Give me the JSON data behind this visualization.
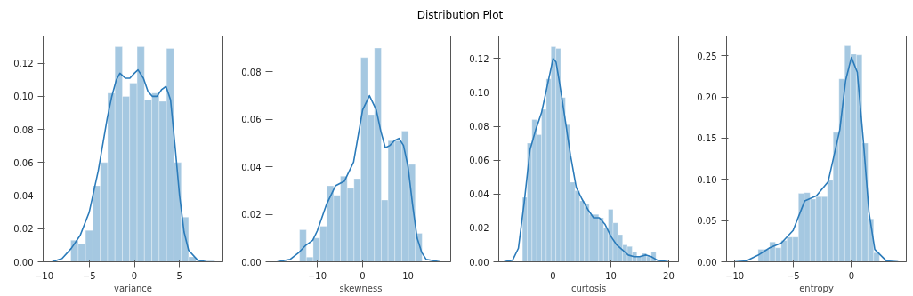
{
  "chart_data": [
    {
      "type": "other",
      "title": "Distribution Plot"
    },
    {
      "type": "histogram",
      "xlabel": "variance",
      "grid": false,
      "xlim": [
        -10.1,
        9.8
      ],
      "ylim": [
        0,
        0.1365
      ],
      "xticks": [
        -10,
        -5,
        0,
        5
      ],
      "yticks": [
        {
          "value": 0,
          "label": "0.00"
        },
        {
          "value": 0.02,
          "label": "0.02"
        },
        {
          "value": 0.04,
          "label": "0.04"
        },
        {
          "value": 0.06,
          "label": "0.06"
        },
        {
          "value": 0.08,
          "label": "0.08"
        },
        {
          "value": 0.1,
          "label": "0.10"
        },
        {
          "value": 0.12,
          "label": "0.12"
        }
      ],
      "series": [
        {
          "type": "histogram",
          "color": "#a5c8e1",
          "bins": [
            -7.04,
            -6.22,
            -5.41,
            -4.59,
            -3.78,
            -2.96,
            -2.15,
            -1.33,
            -0.52,
            0.3,
            1.11,
            1.93,
            2.74,
            3.56,
            4.37,
            5.19,
            6.0,
            6.82
          ],
          "values": [
            0.013,
            0.011,
            0.019,
            0.046,
            0.06,
            0.102,
            0.13,
            0.1,
            0.108,
            0.13,
            0.098,
            0.102,
            0.097,
            0.129,
            0.06,
            0.027,
            0.003
          ]
        },
        {
          "type": "line",
          "color": "#2b7bba",
          "x": [
            -9.1,
            -8,
            -7,
            -6,
            -5,
            -4,
            -3,
            -2.5,
            -2,
            -1.6,
            -1,
            -0.5,
            0,
            0.4,
            1,
            1.5,
            2,
            2.5,
            3,
            3.5,
            4,
            4.5,
            5,
            5.5,
            6,
            7,
            8,
            8.9
          ],
          "values": [
            0,
            0.002,
            0.008,
            0.016,
            0.03,
            0.055,
            0.087,
            0.1,
            0.11,
            0.114,
            0.111,
            0.111,
            0.114,
            0.116,
            0.111,
            0.103,
            0.1,
            0.1,
            0.104,
            0.106,
            0.098,
            0.07,
            0.04,
            0.018,
            0.007,
            0.001,
            0,
            0
          ]
        }
      ]
    },
    {
      "type": "histogram",
      "xlabel": "skewness",
      "grid": false,
      "xlim": [
        -20.2,
        19.4
      ],
      "ylim": [
        0,
        0.0951
      ],
      "xticks": [
        -10,
        0,
        10
      ],
      "yticks": [
        {
          "value": 0,
          "label": "0.00"
        },
        {
          "value": 0.02,
          "label": "0.02"
        },
        {
          "value": 0.04,
          "label": "0.04"
        },
        {
          "value": 0.06,
          "label": "0.06"
        },
        {
          "value": 0.08,
          "label": "0.08"
        }
      ],
      "series": [
        {
          "type": "histogram",
          "color": "#a5c8e1",
          "bins": [
            -13.9,
            -12.4,
            -10.9,
            -9.4,
            -7.9,
            -6.4,
            -4.9,
            -3.4,
            -1.9,
            -0.4,
            1.1,
            2.6,
            4.1,
            5.6,
            7.1,
            8.6,
            10.1,
            11.6,
            13.1
          ],
          "values": [
            0.0135,
            0.002,
            0.01,
            0.015,
            0.032,
            0.028,
            0.036,
            0.031,
            0.035,
            0.086,
            0.062,
            0.09,
            0.026,
            0.051,
            0.051,
            0.055,
            0.041,
            0.012
          ]
        },
        {
          "type": "line",
          "color": "#2b7bba",
          "x": [
            -18.8,
            -16,
            -14,
            -12.5,
            -11,
            -10,
            -8,
            -6,
            -4,
            -2,
            0,
            1.5,
            3,
            4,
            5,
            6,
            7,
            8,
            9,
            10,
            11,
            12,
            13,
            14,
            17
          ],
          "values": [
            0,
            0.001,
            0.004,
            0.007,
            0.009,
            0.013,
            0.024,
            0.032,
            0.034,
            0.042,
            0.064,
            0.07,
            0.064,
            0.055,
            0.048,
            0.049,
            0.051,
            0.052,
            0.049,
            0.04,
            0.024,
            0.01,
            0.004,
            0.001,
            0
          ]
        }
      ]
    },
    {
      "type": "histogram",
      "xlabel": "curtosis",
      "grid": false,
      "xlim": [
        -9.4,
        21.7
      ],
      "ylim": [
        0,
        0.1333
      ],
      "xticks": [
        0,
        10,
        20
      ],
      "yticks": [
        {
          "value": 0,
          "label": "0.00"
        },
        {
          "value": 0.02,
          "label": "0.02"
        },
        {
          "value": 0.04,
          "label": "0.04"
        },
        {
          "value": 0.06,
          "label": "0.06"
        },
        {
          "value": 0.08,
          "label": "0.08"
        },
        {
          "value": 0.1,
          "label": "0.10"
        },
        {
          "value": 0.12,
          "label": "0.12"
        }
      ],
      "series": [
        {
          "type": "histogram",
          "color": "#a5c8e1",
          "bins": [
            -5.3,
            -4.48,
            -3.65,
            -2.83,
            -2.0,
            -1.18,
            -0.35,
            0.48,
            1.3,
            2.13,
            2.95,
            3.78,
            4.6,
            5.43,
            6.25,
            7.08,
            7.9,
            8.73,
            9.55,
            10.38,
            11.2,
            12.03,
            12.85,
            13.68,
            14.5,
            15.33,
            16.15,
            16.98,
            17.8
          ],
          "values": [
            0.038,
            0.07,
            0.084,
            0.075,
            0.09,
            0.108,
            0.127,
            0.126,
            0.097,
            0.081,
            0.047,
            0.042,
            0.036,
            0.034,
            0.028,
            0.028,
            0.026,
            0.02,
            0.031,
            0.023,
            0.016,
            0.01,
            0.009,
            0.006,
            0.003,
            0.005,
            0.003,
            0.006
          ]
        },
        {
          "type": "line",
          "color": "#2b7bba",
          "x": [
            -8.5,
            -7,
            -6,
            -5,
            -4,
            -3,
            -2,
            -1,
            0,
            0.5,
            1,
            2,
            3,
            4,
            5,
            6,
            7,
            8,
            9,
            10,
            11,
            12,
            13,
            14,
            15,
            16,
            17,
            18,
            20
          ],
          "values": [
            0,
            0.001,
            0.008,
            0.035,
            0.066,
            0.078,
            0.088,
            0.104,
            0.12,
            0.118,
            0.108,
            0.086,
            0.063,
            0.044,
            0.037,
            0.031,
            0.026,
            0.026,
            0.022,
            0.015,
            0.01,
            0.007,
            0.004,
            0.003,
            0.003,
            0.004,
            0.003,
            0.001,
            0
          ]
        }
      ]
    },
    {
      "type": "histogram",
      "xlabel": "entropy",
      "grid": false,
      "xlim": [
        -10.7,
        4.7
      ],
      "ylim": [
        0,
        0.274
      ],
      "xticks": [
        -10,
        -5,
        0
      ],
      "yticks": [
        {
          "value": 0,
          "label": "0.00"
        },
        {
          "value": 0.05,
          "label": "0.05"
        },
        {
          "value": 0.1,
          "label": "0.10"
        },
        {
          "value": 0.15,
          "label": "0.15"
        },
        {
          "value": 0.2,
          "label": "0.20"
        },
        {
          "value": 0.25,
          "label": "0.25"
        }
      ],
      "series": [
        {
          "type": "histogram",
          "color": "#a5c8e1",
          "bins": [
            -8.0,
            -7.51,
            -7.01,
            -6.52,
            -6.02,
            -5.53,
            -5.03,
            -4.54,
            -4.04,
            -3.55,
            -3.05,
            -2.56,
            -2.06,
            -1.57,
            -1.07,
            -0.58,
            -0.08,
            0.42,
            0.91,
            1.41,
            1.9,
            2.4
          ],
          "values": [
            0.015,
            0.015,
            0.024,
            0.017,
            0.026,
            0.03,
            0.03,
            0.083,
            0.084,
            0.076,
            0.079,
            0.079,
            0.099,
            0.157,
            0.222,
            0.262,
            0.252,
            0.251,
            0.144,
            0.052,
            0.011
          ]
        },
        {
          "type": "line",
          "color": "#2b7bba",
          "x": [
            -10,
            -9,
            -8,
            -7,
            -6,
            -5,
            -4,
            -3,
            -2,
            -1,
            -0.5,
            0,
            0.5,
            1,
            1.5,
            2,
            3,
            4
          ],
          "values": [
            0,
            0.001,
            0.008,
            0.017,
            0.023,
            0.038,
            0.074,
            0.08,
            0.097,
            0.16,
            0.22,
            0.248,
            0.23,
            0.15,
            0.06,
            0.015,
            0.001,
            0
          ]
        }
      ]
    }
  ]
}
